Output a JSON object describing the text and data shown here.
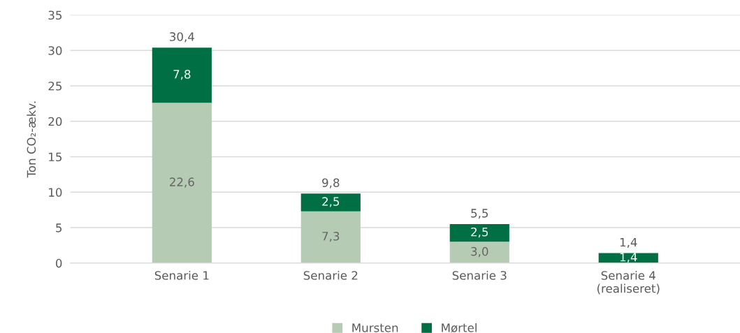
{
  "chart_data": {
    "type": "bar",
    "stacked": true,
    "ylabel": "Ton CO₂-ækv.",
    "categories": [
      "Senarie 1",
      "Senarie 2",
      "Senarie 3",
      "Senarie 4\n(realiseret)"
    ],
    "series": [
      {
        "name": "Mursten",
        "color": "#b5cbb3",
        "values": [
          22.6,
          7.3,
          3.0,
          null
        ],
        "value_labels": [
          "22,6",
          "7,3",
          "3,0",
          null
        ]
      },
      {
        "name": "Mørtel",
        "color": "#016f44",
        "values": [
          7.8,
          2.5,
          2.5,
          1.4
        ],
        "value_labels": [
          "7,8",
          "2,5",
          "2,5",
          "1,4"
        ]
      }
    ],
    "totals": [
      "30,4",
      "9,8",
      "5,5",
      "1,4"
    ],
    "ylim": [
      0,
      35
    ],
    "yticks": [
      0,
      5,
      10,
      15,
      20,
      25,
      30,
      35
    ],
    "grid": "y",
    "legend": "bottom"
  }
}
